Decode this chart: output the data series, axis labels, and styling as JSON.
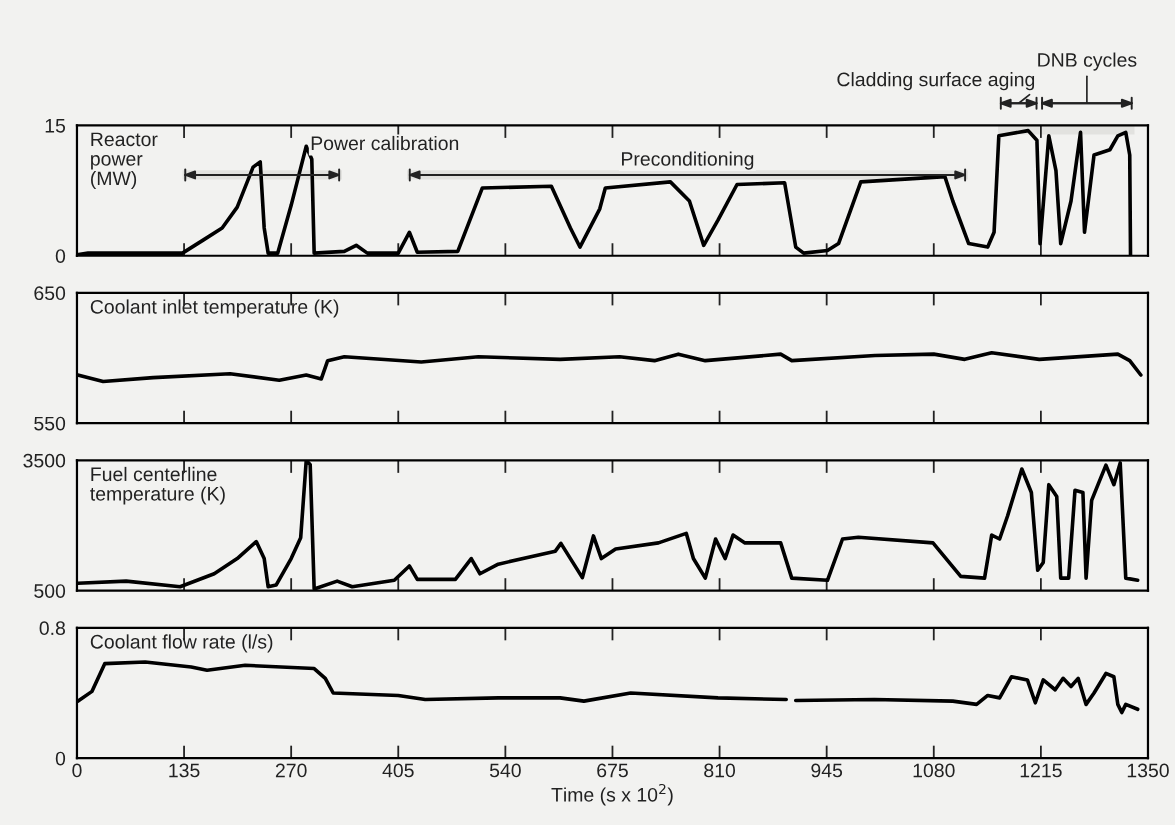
{
  "chart_data": [
    {
      "type": "line",
      "title": "Reactor\npower\n(MW)",
      "xlim": [
        0,
        1350
      ],
      "xticks": [
        0,
        135,
        270,
        405,
        540,
        675,
        810,
        945,
        1080,
        1215,
        1350
      ],
      "ylim": [
        0,
        15
      ],
      "yticks": [
        0,
        15
      ],
      "tick_labels": "y",
      "x": [
        0,
        14,
        133,
        159,
        183,
        202,
        222,
        231,
        236,
        241,
        253,
        270,
        289,
        296,
        299,
        337,
        352,
        366,
        405,
        419,
        429,
        480,
        511,
        598,
        622,
        634,
        659,
        666,
        748,
        772,
        790,
        808,
        832,
        892,
        906,
        916,
        946,
        960,
        988,
        1094,
        1104,
        1124,
        1148,
        1156,
        1162,
        1199,
        1210,
        1214,
        1225,
        1234,
        1240,
        1253,
        1265,
        1270,
        1282,
        1302,
        1312,
        1322,
        1327,
        1328
      ],
      "series": [
        {
          "color": "#000000",
          "values": [
            0.1,
            0.3,
            0.3,
            1.8,
            3.2,
            5.6,
            10.2,
            10.8,
            3.2,
            0.3,
            0.3,
            5.8,
            12.6,
            11.1,
            0.3,
            0.5,
            1.2,
            0.3,
            0.3,
            2.7,
            0.4,
            0.5,
            7.8,
            8.0,
            3.2,
            1.0,
            5.4,
            7.8,
            8.5,
            6.3,
            1.2,
            4.1,
            8.2,
            8.4,
            1.0,
            0.3,
            0.6,
            1.4,
            8.5,
            9.1,
            6.3,
            1.4,
            1.0,
            2.7,
            13.8,
            14.4,
            13.3,
            1.4,
            13.8,
            9.8,
            1.4,
            6.3,
            14.2,
            2.7,
            11.6,
            12.2,
            13.8,
            14.2,
            11.6,
            0.1
          ]
        }
      ],
      "bands": [
        {
          "axis": "x",
          "from": 133,
          "to": 334,
          "label": "Power calibration"
        },
        {
          "axis": "x",
          "from": 416,
          "to": 1123,
          "label": "Preconditioning"
        },
        {
          "axis": "x",
          "from": 1161,
          "to": 1213,
          "label": "Cladding surface aging"
        },
        {
          "axis": "x",
          "from": 1213,
          "to": 1333,
          "label": "DNB cycles"
        }
      ]
    },
    {
      "type": "line",
      "title": "Coolant inlet temperature (K)",
      "xlim": [
        0,
        1350
      ],
      "xticks": [
        0,
        135,
        270,
        405,
        540,
        675,
        810,
        945,
        1080,
        1215,
        1350
      ],
      "ylim": [
        550,
        650
      ],
      "yticks": [
        550,
        650
      ],
      "tick_labels": "y",
      "x": [
        1,
        33,
        96,
        193,
        255,
        289,
        308,
        316,
        337,
        434,
        506,
        609,
        684,
        728,
        758,
        792,
        887,
        901,
        1006,
        1080,
        1119,
        1153,
        1213,
        1312,
        1327,
        1341
      ],
      "series": [
        {
          "color": "#000000",
          "values": [
            587,
            582,
            585,
            588,
            583,
            587,
            584,
            598,
            601,
            597,
            601,
            599,
            601,
            598,
            603,
            598,
            603,
            598,
            602,
            603,
            599,
            604,
            599,
            603,
            598,
            587
          ]
        }
      ]
    },
    {
      "type": "line",
      "title": "Fuel centerline\ntemperature (K)",
      "xlim": [
        0,
        1350
      ],
      "xticks": [
        0,
        135,
        270,
        405,
        540,
        675,
        810,
        945,
        1080,
        1215,
        1350
      ],
      "ylim": [
        500,
        3500
      ],
      "yticks": [
        500,
        3500
      ],
      "tick_labels": "y",
      "x": [
        1,
        62,
        130,
        173,
        202,
        226,
        236,
        241,
        251,
        270,
        282,
        289,
        294,
        299,
        328,
        347,
        400,
        419,
        429,
        477,
        497,
        508,
        531,
        603,
        610,
        637,
        651,
        661,
        679,
        733,
        768,
        777,
        792,
        805,
        817,
        827,
        842,
        887,
        901,
        946,
        965,
        985,
        1079,
        1114,
        1144,
        1153,
        1163,
        1173,
        1191,
        1203,
        1211,
        1218,
        1225,
        1235,
        1240,
        1250,
        1258,
        1268,
        1272,
        1279,
        1287,
        1297,
        1307,
        1315,
        1322,
        1337
      ],
      "series": [
        {
          "color": "#000000",
          "values": [
            670,
            720,
            590,
            890,
            1240,
            1630,
            1240,
            590,
            630,
            1240,
            1720,
            3500,
            3400,
            540,
            720,
            590,
            740,
            1070,
            760,
            760,
            1240,
            890,
            1110,
            1410,
            1590,
            800,
            1760,
            1240,
            1460,
            1600,
            1820,
            1240,
            790,
            1690,
            1240,
            1780,
            1600,
            1600,
            790,
            740,
            1690,
            1730,
            1600,
            830,
            790,
            1780,
            1690,
            2220,
            3300,
            2760,
            970,
            1150,
            2940,
            2670,
            790,
            790,
            2810,
            2760,
            790,
            2580,
            2940,
            3390,
            2940,
            3440,
            790,
            740
          ]
        }
      ]
    },
    {
      "type": "line",
      "title": "Coolant flow rate (l/s)",
      "xlabel": "Time (s x 10$^{2}$)",
      "xlim": [
        0,
        1350
      ],
      "xticks": [
        0,
        135,
        270,
        405,
        540,
        675,
        810,
        945,
        1080,
        1215,
        1350
      ],
      "ylim": [
        0,
        0.8
      ],
      "yticks": [
        0,
        0.8
      ],
      "x": [
        1,
        19,
        35,
        86,
        144,
        164,
        212,
        299,
        313,
        323,
        405,
        439,
        531,
        609,
        639,
        698,
        808,
        894,
        900,
        906,
        1005,
        1104,
        1134,
        1148,
        1163,
        1178,
        1198,
        1208,
        1218,
        1233,
        1243,
        1253,
        1262,
        1272,
        1282,
        1297,
        1307,
        1312,
        1317,
        1322,
        1337
      ],
      "series": [
        {
          "color": "#000000",
          "values": [
            0.35,
            0.41,
            0.58,
            0.59,
            0.56,
            0.54,
            0.57,
            0.55,
            0.49,
            0.4,
            0.385,
            0.36,
            0.37,
            0.37,
            0.35,
            0.4,
            0.37,
            0.36,
            null,
            0.354,
            0.36,
            0.35,
            0.33,
            0.385,
            0.37,
            0.5,
            0.48,
            0.34,
            0.48,
            0.42,
            0.49,
            0.44,
            0.49,
            0.33,
            0.4,
            0.52,
            0.5,
            0.33,
            0.28,
            0.33,
            0.3
          ]
        }
      ]
    }
  ]
}
